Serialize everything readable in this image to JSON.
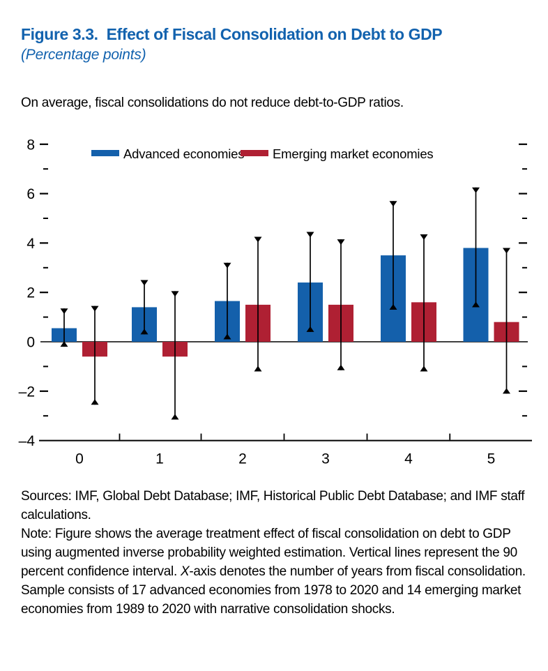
{
  "figure": {
    "title": "Figure 3.3.  Effect of Fiscal Consolidation on Debt to GDP",
    "subtitle": "(Percentage points)",
    "headline": "On average, fiscal consolidations do not reduce debt-to-GDP ratios.",
    "title_color": "#1262ae"
  },
  "chart_data": {
    "type": "bar",
    "title": "Effect of Fiscal Consolidation on Debt to GDP",
    "xlabel": "Years from fiscal consolidation",
    "ylabel": "Percentage points",
    "categories": [
      "0",
      "1",
      "2",
      "3",
      "4",
      "5"
    ],
    "series": [
      {
        "name": "Advanced economies",
        "color": "#1460ab",
        "values": [
          0.55,
          1.4,
          1.65,
          2.4,
          3.5,
          3.8
        ],
        "ci_low": [
          -0.2,
          0.3,
          0.1,
          0.4,
          1.3,
          1.4
        ],
        "ci_high": [
          1.35,
          2.5,
          3.2,
          4.45,
          5.7,
          6.25
        ]
      },
      {
        "name": "Emerging market economies",
        "color": "#af2033",
        "values": [
          -0.6,
          -0.6,
          1.5,
          1.5,
          1.6,
          0.8
        ],
        "ci_low": [
          -2.55,
          -3.15,
          -1.2,
          -1.15,
          -1.2,
          -2.1
        ],
        "ci_high": [
          1.45,
          2.05,
          4.25,
          4.15,
          4.35,
          3.8
        ]
      }
    ],
    "ylim": [
      -4,
      8.5
    ],
    "y_major_ticks": [
      8,
      6,
      4,
      2,
      0,
      -2,
      -4
    ],
    "y_tick_labels": [
      "8",
      "6",
      "4",
      "2",
      "0",
      "–2",
      "–4"
    ],
    "y_minor_ticks": [
      7,
      5,
      3,
      1,
      -1,
      -3
    ],
    "grid": false,
    "legend_position": "top",
    "errorbar_meaning": "90 percent confidence interval",
    "errorbar_color": "#000000",
    "axis_color": "#000000"
  },
  "notes": {
    "sources": "Sources: IMF, Global Debt Database; IMF, Historical Public Debt Database; and IMF staff calculations.",
    "note_segments": [
      {
        "text": "Note: Figure shows the average treatment effect of fiscal consolidation on debt to GDP using augmented inverse probability weighted estimation. Vertical lines represent the 90 percent confidence interval. ",
        "italic": false
      },
      {
        "text": "X",
        "italic": true
      },
      {
        "text": "-axis denotes the number of years from fiscal consolidation. Sample consists of 17 advanced economies from 1978 to 2020 and 14 emerging market economies from 1989 to 2020 with narrative consolidation shocks.",
        "italic": false
      }
    ]
  }
}
